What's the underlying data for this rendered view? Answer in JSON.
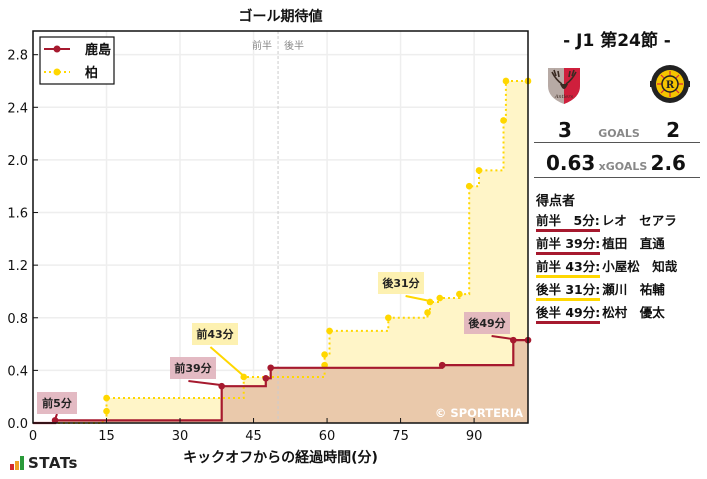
{
  "chart_data": {
    "type": "line",
    "subtype": "step",
    "title": "ゴール期待値",
    "xlabel": "キックオフからの経過時間(分)",
    "ylabel": "",
    "xlim": [
      0,
      101
    ],
    "ylim": [
      0,
      2.98
    ],
    "x_ticks": [
      0,
      15,
      30,
      45,
      60,
      75,
      90
    ],
    "y_ticks": [
      0.0,
      0.4,
      0.8,
      1.2,
      1.6,
      2.0,
      2.4,
      2.8
    ],
    "y_tick_labels": [
      "0.0",
      "0.4",
      "0.8",
      "1.2",
      "1.6",
      "2.0",
      "2.4",
      "2.8"
    ],
    "grid": true,
    "legend_position": "upper left",
    "half_marker": {
      "x": 50,
      "left_label": "前半",
      "right_label": "後半"
    },
    "watermark": "© SPORTERIA",
    "series": [
      {
        "name": "鹿島",
        "color": "#a6192e",
        "line_style": "solid",
        "fill": "#e8c4a8",
        "points": [
          [
            0,
            0.0
          ],
          [
            4.5,
            0.02
          ],
          [
            38.5,
            0.28
          ],
          [
            47.5,
            0.34
          ],
          [
            48.5,
            0.42
          ],
          [
            83.5,
            0.44
          ],
          [
            98,
            0.63
          ],
          [
            101,
            0.63
          ]
        ],
        "shot_points": [
          [
            4.5,
            0.02
          ],
          [
            38.5,
            0.28
          ],
          [
            47.5,
            0.34
          ],
          [
            48.5,
            0.42
          ],
          [
            83.5,
            0.44
          ],
          [
            98,
            0.63
          ],
          [
            101,
            0.63
          ]
        ]
      },
      {
        "name": "柏",
        "color": "#ffd700",
        "line_style": "dotted",
        "fill": "#fff5c8",
        "points": [
          [
            0,
            0.0
          ],
          [
            14,
            0.01
          ],
          [
            15,
            0.09
          ],
          [
            15,
            0.19
          ],
          [
            43,
            0.27
          ],
          [
            43,
            0.35
          ],
          [
            59.5,
            0.44
          ],
          [
            59.5,
            0.52
          ],
          [
            60.5,
            0.7
          ],
          [
            72.5,
            0.8
          ],
          [
            80.5,
            0.84
          ],
          [
            81,
            0.92
          ],
          [
            83,
            0.95
          ],
          [
            87,
            0.98
          ],
          [
            89,
            1.8
          ],
          [
            91,
            1.92
          ],
          [
            96,
            2.3
          ],
          [
            96.5,
            2.6
          ],
          [
            101,
            2.6
          ]
        ],
        "shot_points": [
          [
            15,
            0.09
          ],
          [
            15,
            0.19
          ],
          [
            43,
            0.35
          ],
          [
            59.5,
            0.44
          ],
          [
            59.5,
            0.52
          ],
          [
            60.5,
            0.7
          ],
          [
            72.5,
            0.8
          ],
          [
            80.5,
            0.84
          ],
          [
            81,
            0.92
          ],
          [
            83,
            0.95
          ],
          [
            87,
            0.98
          ],
          [
            89,
            1.8
          ],
          [
            91,
            1.92
          ],
          [
            96,
            2.3
          ],
          [
            96.5,
            2.6
          ],
          [
            101,
            2.6
          ]
        ]
      }
    ],
    "annotations": [
      {
        "label": "前5分",
        "team": "鹿島",
        "x": 4.5,
        "y": 0.02
      },
      {
        "label": "前39分",
        "team": "鹿島",
        "x": 38.5,
        "y": 0.28
      },
      {
        "label": "前43分",
        "team": "柏",
        "x": 43,
        "y": 0.35
      },
      {
        "label": "後31分",
        "team": "柏",
        "x": 81,
        "y": 0.92
      },
      {
        "label": "後49分",
        "team": "鹿島",
        "x": 98,
        "y": 0.63
      }
    ]
  },
  "chart": {
    "title": "ゴール期待値",
    "xlabel": "キックオフからの経過時間(分)",
    "legend": [
      {
        "label": "鹿島"
      },
      {
        "label": "柏"
      }
    ],
    "half_left": "前半",
    "half_right": "後半",
    "watermark": "© SPORTERIA"
  },
  "branding": {
    "stats_logo_text": "STATs",
    "bar_colors": [
      "#d42a2a",
      "#f0a020",
      "#2a9a3a"
    ]
  },
  "colors": {
    "home": "#a6192e",
    "away": "#ffd700",
    "home_fill": "#e8c4a8",
    "away_fill": "#fff5c8",
    "home_label_bg": "#e0b3bc",
    "away_label_bg": "#fdf0a8"
  },
  "match": {
    "title": "- J1 第24節 -",
    "home": {
      "name": "鹿島",
      "goals": "3",
      "xg": "0.63"
    },
    "away": {
      "name": "柏",
      "goals": "2",
      "xg": "2.6"
    },
    "goals_label": "GOALS",
    "xg_label": "xGOALS"
  },
  "scorers": {
    "title": "得点者",
    "items": [
      {
        "time": "前半　5分:",
        "name": "レオ　セアラ",
        "team": "home"
      },
      {
        "time": "前半 39分:",
        "name": "植田　直通",
        "team": "home"
      },
      {
        "time": "前半 43分:",
        "name": "小屋松　知哉",
        "team": "away"
      },
      {
        "time": "後半 31分:",
        "name": "瀬川　祐輔",
        "team": "away"
      },
      {
        "time": "後半 49分:",
        "name": "松村　優太",
        "team": "home"
      }
    ]
  }
}
